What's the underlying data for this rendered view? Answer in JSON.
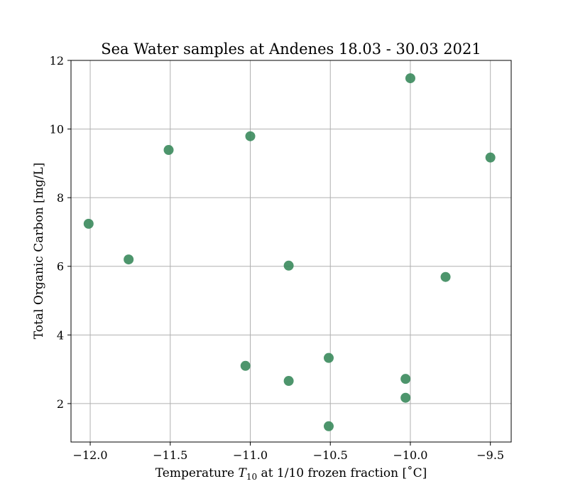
{
  "chart_data": {
    "type": "scatter",
    "title": "Sea Water samples at Andenes 18.03 - 30.03 2021",
    "xlabel": {
      "prefix": "Temperature ",
      "symbol": "T",
      "subscript": "10",
      "suffix": " at 1/10 frozen fraction [˚C]"
    },
    "ylabel": "Total Organic Carbon [mg/L]",
    "xlim": [
      -12.12,
      -9.37
    ],
    "ylim": [
      0.88,
      12.0
    ],
    "xticks": [
      -12.0,
      -11.5,
      -11.0,
      -10.5,
      -10.0,
      -9.5
    ],
    "xtick_labels": [
      "−12.0",
      "−11.5",
      "−11.0",
      "−10.5",
      "−10.0",
      "−9.5"
    ],
    "yticks": [
      2,
      4,
      6,
      8,
      10,
      12
    ],
    "ytick_labels": [
      "2",
      "4",
      "6",
      "8",
      "10",
      "12"
    ],
    "grid": true,
    "marker_color": "#3a8a5c",
    "grid_color": "#b0b0b0",
    "series": [
      {
        "x": [
          -12.01,
          -11.76,
          -11.51,
          -11.0,
          -11.03,
          -10.76,
          -10.76,
          -10.51,
          -10.51,
          -10.0,
          -10.03,
          -10.03,
          -9.78,
          -9.5
        ],
        "y": [
          7.24,
          6.2,
          9.39,
          9.79,
          3.1,
          6.02,
          2.66,
          3.33,
          1.34,
          11.48,
          2.72,
          2.17,
          5.69,
          9.17
        ]
      }
    ]
  }
}
